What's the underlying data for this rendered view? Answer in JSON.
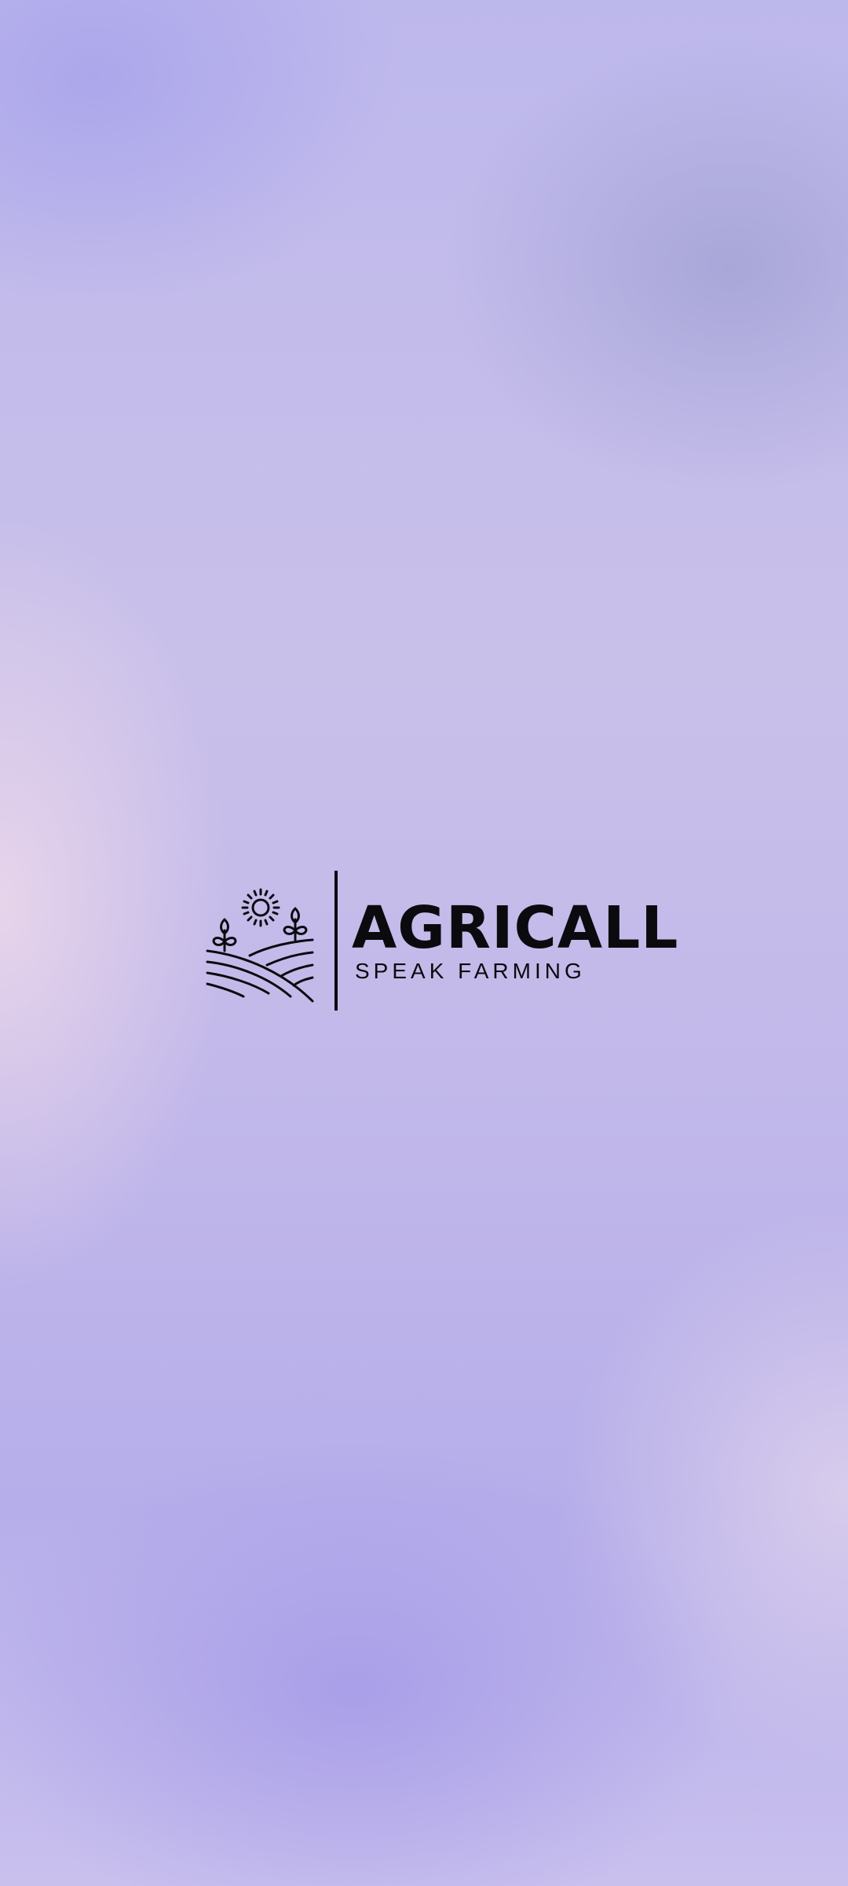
{
  "splash": {
    "brand_name": "AGRICALL",
    "tagline": "SPEAK FARMING",
    "logo_icon": "farm-field-sun-icon",
    "ink_color": "#0b0b0f"
  }
}
